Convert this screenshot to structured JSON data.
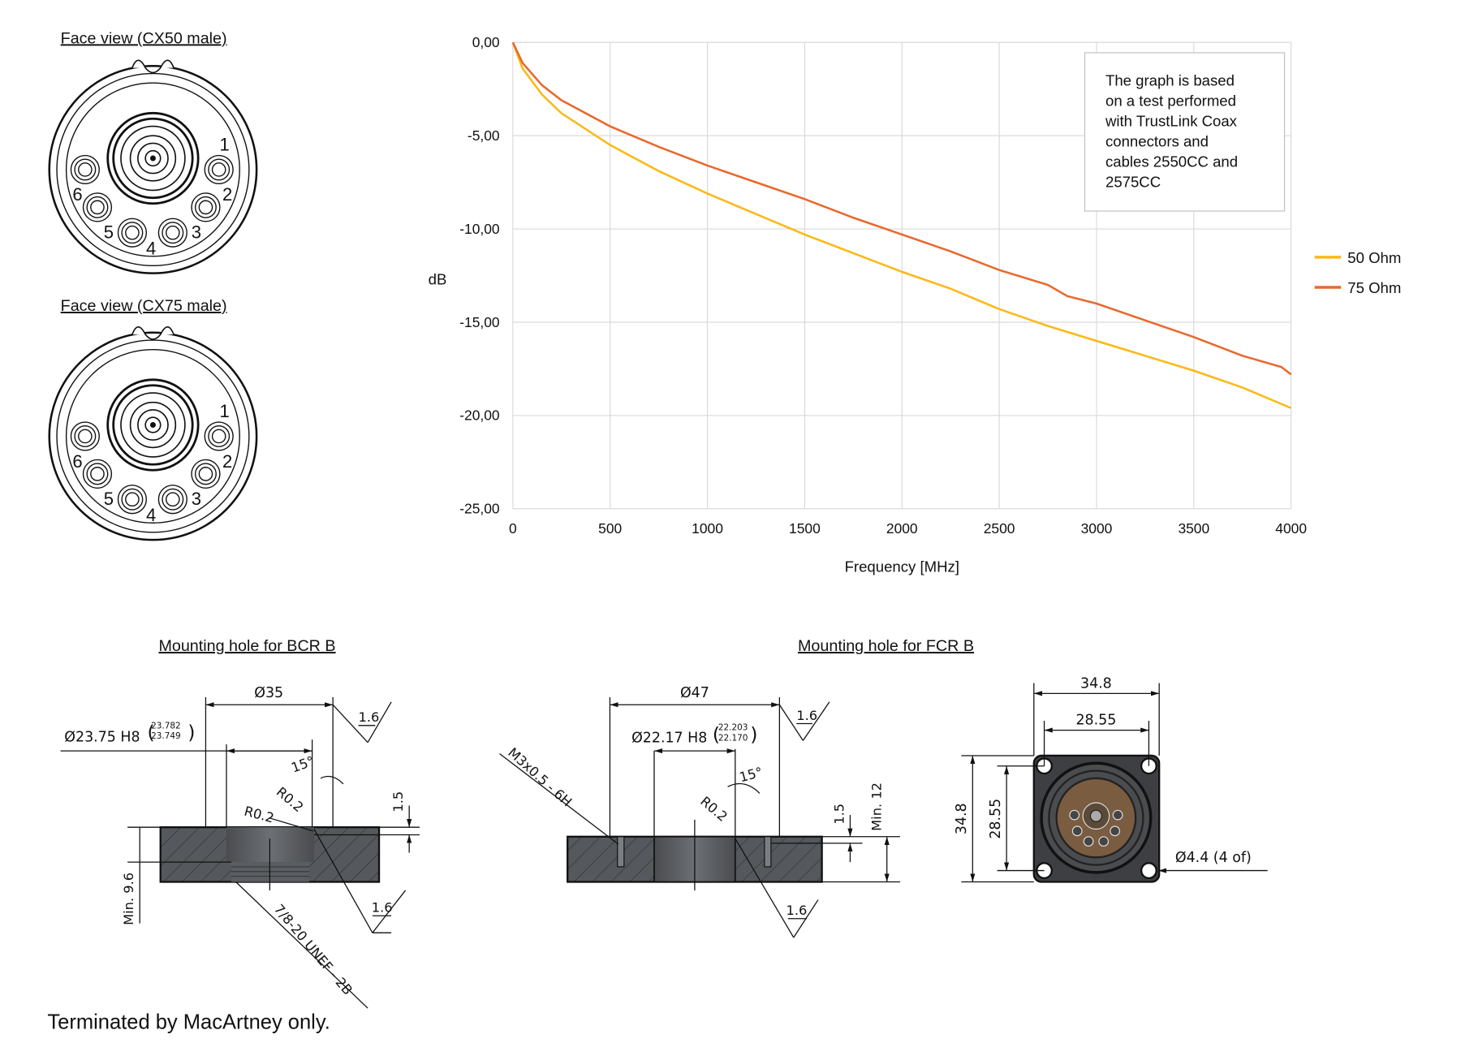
{
  "face_views": [
    {
      "title": "Face view (CX50 male)",
      "pins": [
        "1",
        "2",
        "3",
        "4",
        "5",
        "6"
      ]
    },
    {
      "title": "Face view (CX75 male)",
      "pins": [
        "1",
        "2",
        "3",
        "4",
        "5",
        "6"
      ]
    }
  ],
  "chart_data": {
    "type": "line",
    "title": "",
    "xlabel": "Frequency [MHz]",
    "ylabel": "dB",
    "xlim": [
      0,
      4000
    ],
    "ylim": [
      -25,
      0
    ],
    "xticks": [
      "0",
      "500",
      "1000",
      "1500",
      "2000",
      "2500",
      "3000",
      "3500",
      "4000"
    ],
    "xtick_values": [
      0,
      500,
      1000,
      1500,
      2000,
      2500,
      3000,
      3500,
      4000
    ],
    "yticks": [
      "0,00",
      "-5,00",
      "-10,00",
      "-15,00",
      "-20,00",
      "-25,00"
    ],
    "ytick_values": [
      0,
      -5,
      -10,
      -15,
      -20,
      -25
    ],
    "grid": true,
    "legend_position": "right",
    "annotation": [
      "The graph is based",
      "on a test performed",
      "with TrustLink Coax",
      "connectors and",
      "cables 2550CC and",
      "2575CC"
    ],
    "series": [
      {
        "name": "50 Ohm",
        "color": "#FBB917",
        "x": [
          0,
          50,
          150,
          250,
          500,
          750,
          1000,
          1250,
          1500,
          1750,
          2000,
          2250,
          2500,
          2750,
          3000,
          3250,
          3500,
          3750,
          4000
        ],
        "y": [
          0,
          -1.4,
          -2.8,
          -3.8,
          -5.5,
          -6.9,
          -8.1,
          -9.2,
          -10.3,
          -11.3,
          -12.3,
          -13.2,
          -14.3,
          -15.2,
          -16.0,
          -16.8,
          -17.6,
          -18.5,
          -19.6
        ]
      },
      {
        "name": "75 Ohm",
        "color": "#E8692D",
        "x": [
          0,
          50,
          150,
          250,
          500,
          750,
          1000,
          1250,
          1500,
          1750,
          2000,
          2250,
          2500,
          2750,
          2850,
          3000,
          3250,
          3500,
          3750,
          3950,
          4000
        ],
        "y": [
          0,
          -1.1,
          -2.3,
          -3.1,
          -4.5,
          -5.6,
          -6.6,
          -7.5,
          -8.4,
          -9.4,
          -10.3,
          -11.2,
          -12.2,
          -13.0,
          -13.6,
          -14.0,
          -14.9,
          -15.8,
          -16.8,
          -17.4,
          -17.8
        ]
      }
    ]
  },
  "bcr": {
    "title": "Mounting hole for BCR B",
    "dia_outer": "Ø35",
    "dia_bore": "Ø23.75 H8",
    "tol_upper": "23.782",
    "tol_lower": "23.749",
    "angle": "15°",
    "radius1": "R0.2",
    "radius2": "R0.2",
    "depth": "1.5",
    "min_thickness": "Min. 9.6",
    "roughness1": "1.6",
    "roughness2": "1.6",
    "thread": "7/8-20 UNEF - 2B"
  },
  "fcr": {
    "title": "Mounting hole for FCR B",
    "dia_outer": "Ø47",
    "dia_bore": "Ø22.17 H8",
    "tol_upper": "22.203",
    "tol_lower": "22.170",
    "screw": "M3x0.5 - 6H",
    "angle": "15°",
    "radius": "R0.2",
    "depth": "1.5",
    "min_thickness": "Min. 12",
    "roughness1": "1.6",
    "roughness2": "1.6"
  },
  "flange": {
    "width": "34.8",
    "hole_spacing_x": "28.55",
    "height": "34.8",
    "hole_spacing_y": "28.55",
    "hole_dia": "Ø4.4 (4 of)"
  },
  "footer": "Terminated by MacArtney only."
}
